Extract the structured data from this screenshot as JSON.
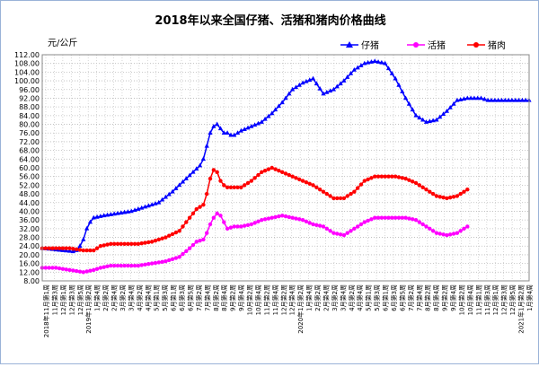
{
  "chart_data": {
    "type": "line",
    "title": "2018年以来全国仔猪、活猪和猪肉价格曲线",
    "unit": "元/公斤",
    "ylim": [
      8,
      112
    ],
    "ytick_step": 4,
    "ytick_labels": [
      "8.00",
      "12.00",
      "16.00",
      "20.00",
      "24.00",
      "28.00",
      "32.00",
      "36.00",
      "40.00",
      "44.00",
      "48.00",
      "52.00",
      "56.00",
      "60.00",
      "64.00",
      "68.00",
      "72.00",
      "76.00",
      "80.00",
      "84.00",
      "88.00",
      "92.00",
      "96.00",
      "100.00",
      "104.00",
      "108.00",
      "112.00"
    ],
    "grid": true,
    "legend_position": "top-right",
    "x_labels": [
      "2018年11月第1周",
      "11月第3周",
      "12月第1周",
      "12月第3周",
      "12月第5周",
      "2019年1月第2周",
      "1月第4周",
      "2月第2周",
      "2月第4周",
      "3月第2周",
      "3月第4周",
      "4月第2周",
      "4月第4周",
      "5月第1周",
      "5月第3周",
      "6月第1周",
      "6月第3周",
      "6月第5周",
      "7月第2周",
      "7月第4周",
      "8月第2周",
      "8月第4周",
      "9月第2周",
      "9月第4周",
      "10月第2周",
      "10月第4周",
      "11月第2周",
      "11月第4周",
      "12月第2周",
      "12月第4周",
      "2020年1月第2周",
      "1月第4周",
      "2月第2周",
      "2月第4周",
      "3月第2周",
      "3月第4周",
      "4月第2周",
      "4月第4周",
      "5月第1周",
      "5月第3周",
      "6月第1周",
      "6月第3周",
      "6月第5周",
      "7月第2周",
      "7月第4周",
      "8月第2周",
      "8月第4周",
      "9月第2周",
      "9月第4周",
      "10月第2周",
      "10月第4周",
      "11月第1周",
      "11月第3周",
      "12月第1周",
      "12月第3周",
      "12月第5周",
      "2021年1月第2周",
      "1月第4周"
    ],
    "series": [
      {
        "name": "仔猪",
        "color": "#0000ff",
        "marker": "triangle",
        "x": [
          0,
          3,
          6,
          9,
          10,
          11,
          12,
          13,
          14,
          15,
          18,
          22,
          26,
          30,
          34,
          38,
          42,
          46,
          47,
          48,
          49,
          50,
          51,
          52,
          53,
          54,
          55,
          56,
          57,
          58,
          61,
          64,
          67,
          70,
          73,
          76,
          79,
          82,
          85,
          88,
          91,
          94,
          97,
          100,
          103,
          106,
          109,
          112,
          115,
          118,
          121,
          124,
          126,
          128,
          130,
          132,
          134,
          136,
          138,
          140,
          142
        ],
        "values": [
          23,
          22.5,
          22,
          21.5,
          22,
          24,
          27,
          32,
          35,
          37,
          38,
          39,
          40,
          42,
          44,
          49,
          55,
          61,
          64,
          70,
          76,
          79,
          80,
          78,
          76,
          76,
          75,
          75,
          76,
          77,
          79,
          81,
          85,
          90,
          96,
          99,
          101,
          94,
          96,
          100,
          105,
          108,
          109,
          108,
          101,
          92,
          84,
          81,
          82,
          86,
          91,
          92,
          92,
          92,
          91,
          91,
          91,
          91,
          91,
          91,
          91
        ],
        "visible_points": 120
      },
      {
        "name": "活猪",
        "color": "#ff00ff",
        "marker": "circle",
        "x": [
          0,
          4,
          8,
          12,
          15,
          17,
          20,
          24,
          28,
          32,
          36,
          40,
          43,
          45,
          47,
          48,
          49,
          50,
          51,
          52,
          53,
          54,
          56,
          58,
          61,
          64,
          67,
          70,
          73,
          76,
          79,
          82,
          85,
          88,
          91,
          94,
          97,
          100,
          103,
          106,
          109,
          112,
          115,
          118,
          121,
          124
        ],
        "values": [
          14,
          14,
          13,
          12,
          13,
          14,
          15,
          15,
          15,
          16,
          17,
          19,
          23,
          26,
          27,
          30,
          34,
          37,
          39,
          38,
          35,
          32,
          33,
          33,
          34,
          36,
          37,
          38,
          37,
          36,
          34,
          33,
          30,
          29,
          32,
          35,
          37,
          37,
          37,
          37,
          36,
          33,
          30,
          29,
          30,
          33
        ],
        "visible_points": 124
      },
      {
        "name": "猪肉",
        "color": "#ff0000",
        "marker": "circle",
        "x": [
          0,
          4,
          8,
          12,
          15,
          17,
          20,
          24,
          28,
          32,
          36,
          40,
          43,
          45,
          47,
          48,
          49,
          50,
          51,
          52,
          53,
          54,
          56,
          58,
          61,
          64,
          67,
          70,
          73,
          76,
          79,
          82,
          85,
          88,
          91,
          94,
          97,
          100,
          103,
          106,
          109,
          112,
          115,
          118,
          121,
          124
        ],
        "values": [
          23,
          23,
          23,
          22,
          22,
          24,
          25,
          25,
          25,
          26,
          28,
          31,
          37,
          41,
          43,
          48,
          55,
          59,
          58,
          54,
          52,
          51,
          51,
          51,
          54,
          58,
          60,
          58,
          56,
          54,
          52,
          49,
          46,
          46,
          49,
          54,
          56,
          56,
          56,
          55,
          53,
          50,
          47,
          46,
          47,
          50
        ],
        "visible_points": 124
      }
    ]
  }
}
